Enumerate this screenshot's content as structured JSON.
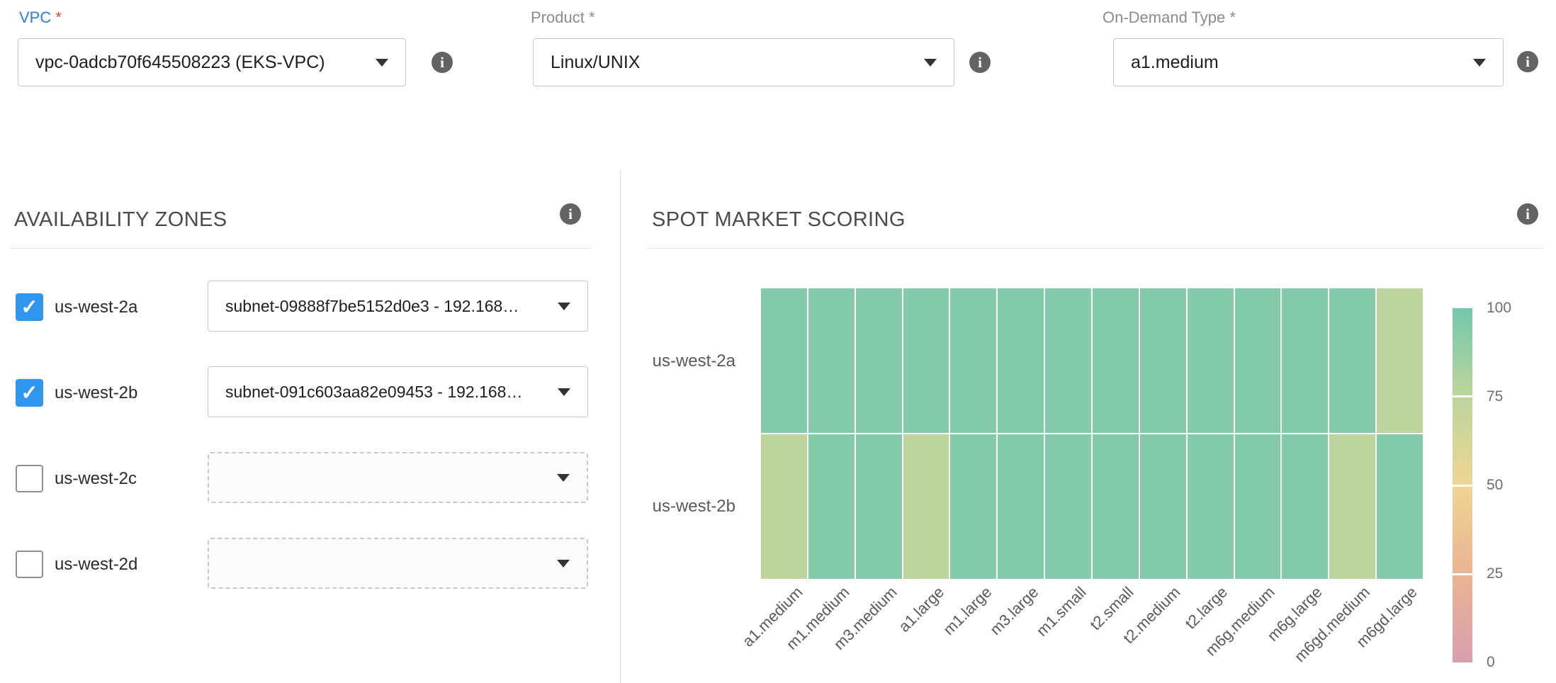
{
  "colors": {
    "accent_blue": "#2a7de2",
    "checkbox_blue": "#2f97f0",
    "asterisk_red": "#e5493d",
    "info_gray": "#636363"
  },
  "icons": {
    "info": "i",
    "check": "✓"
  },
  "form": {
    "vpc": {
      "label": "VPC",
      "required": "*",
      "value": "vpc-0adcb70f645508223 (EKS-VPC)"
    },
    "product": {
      "label": "Product",
      "required": "*",
      "value": "Linux/UNIX"
    },
    "on_demand_type": {
      "label": "On-Demand Type",
      "required": "*",
      "value": "a1.medium"
    }
  },
  "availability_zones": {
    "title": "AVAILABILITY ZONES",
    "rows": [
      {
        "zone": "us-west-2a",
        "checked": true,
        "subnet": "subnet-09888f7be5152d0e3 - 192.168…"
      },
      {
        "zone": "us-west-2b",
        "checked": true,
        "subnet": "subnet-091c603aa82e09453 - 192.168…"
      },
      {
        "zone": "us-west-2c",
        "checked": false,
        "subnet": ""
      },
      {
        "zone": "us-west-2d",
        "checked": false,
        "subnet": ""
      }
    ]
  },
  "spot_market": {
    "title": "SPOT MARKET SCORING"
  },
  "chart_data": {
    "type": "heatmap",
    "title": "SPOT MARKET SCORING",
    "x_categories": [
      "a1.medium",
      "m1.medium",
      "m3.medium",
      "a1.large",
      "m1.large",
      "m3.large",
      "m1.small",
      "t2.small",
      "t2.medium",
      "t2.large",
      "m6g.medium",
      "m6g.large",
      "m6gd.medium",
      "m6gd.large"
    ],
    "y_categories": [
      "us-west-2a",
      "us-west-2b"
    ],
    "values": [
      [
        95,
        95,
        95,
        95,
        95,
        95,
        95,
        95,
        95,
        95,
        95,
        95,
        95,
        75
      ],
      [
        75,
        95,
        95,
        75,
        95,
        95,
        95,
        95,
        95,
        95,
        95,
        95,
        75,
        95
      ]
    ],
    "colorbar": {
      "ticks": [
        100,
        75,
        50,
        25,
        0
      ],
      "stops": [
        {
          "v": 0,
          "c": "#d89fae"
        },
        {
          "v": 25,
          "c": "#e9b493"
        },
        {
          "v": 50,
          "c": "#eed595"
        },
        {
          "v": 75,
          "c": "#bcd59c"
        },
        {
          "v": 100,
          "c": "#74c7ac"
        }
      ]
    },
    "legend_position": "right",
    "grid": false
  }
}
